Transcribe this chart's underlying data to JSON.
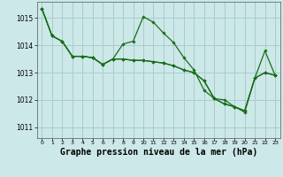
{
  "background_color": "#cce8e8",
  "grid_color": "#aacccc",
  "line_color": "#1a6e1a",
  "marker_color": "#1a6e1a",
  "xlabel": "Graphe pression niveau de la mer (hPa)",
  "xlabel_fontsize": 7,
  "xlim": [
    -0.5,
    23.5
  ],
  "ylim": [
    1010.6,
    1015.6
  ],
  "yticks": [
    1011,
    1012,
    1013,
    1014,
    1015
  ],
  "xticks": [
    0,
    1,
    2,
    3,
    4,
    5,
    6,
    7,
    8,
    9,
    10,
    11,
    12,
    13,
    14,
    15,
    16,
    17,
    18,
    19,
    20,
    21,
    22,
    23
  ],
  "series1": [
    1015.35,
    1014.35,
    1014.15,
    1013.6,
    1013.6,
    1013.55,
    1013.3,
    1013.5,
    1014.05,
    1014.15,
    1015.05,
    1014.85,
    1014.45,
    1014.1,
    1013.55,
    1013.1,
    1012.35,
    1012.05,
    1011.85,
    1011.75,
    1011.6,
    1012.8,
    1013.8,
    1012.9
  ],
  "series2": [
    1015.35,
    1014.35,
    1014.15,
    1013.6,
    1013.6,
    1013.55,
    1013.3,
    1013.5,
    1013.5,
    1013.45,
    1013.45,
    1013.4,
    1013.35,
    1013.25,
    1013.1,
    1013.0,
    1012.7,
    1012.05,
    1011.85,
    1011.75,
    1011.6,
    1012.8,
    1013.0,
    1012.9
  ],
  "series3": [
    1015.35,
    1014.35,
    1014.15,
    1013.6,
    1013.6,
    1013.55,
    1013.3,
    1013.5,
    1013.5,
    1013.45,
    1013.45,
    1013.4,
    1013.35,
    1013.25,
    1013.1,
    1013.0,
    1012.7,
    1012.05,
    1012.0,
    1011.75,
    1011.55,
    1012.8,
    1013.0,
    1012.9
  ]
}
